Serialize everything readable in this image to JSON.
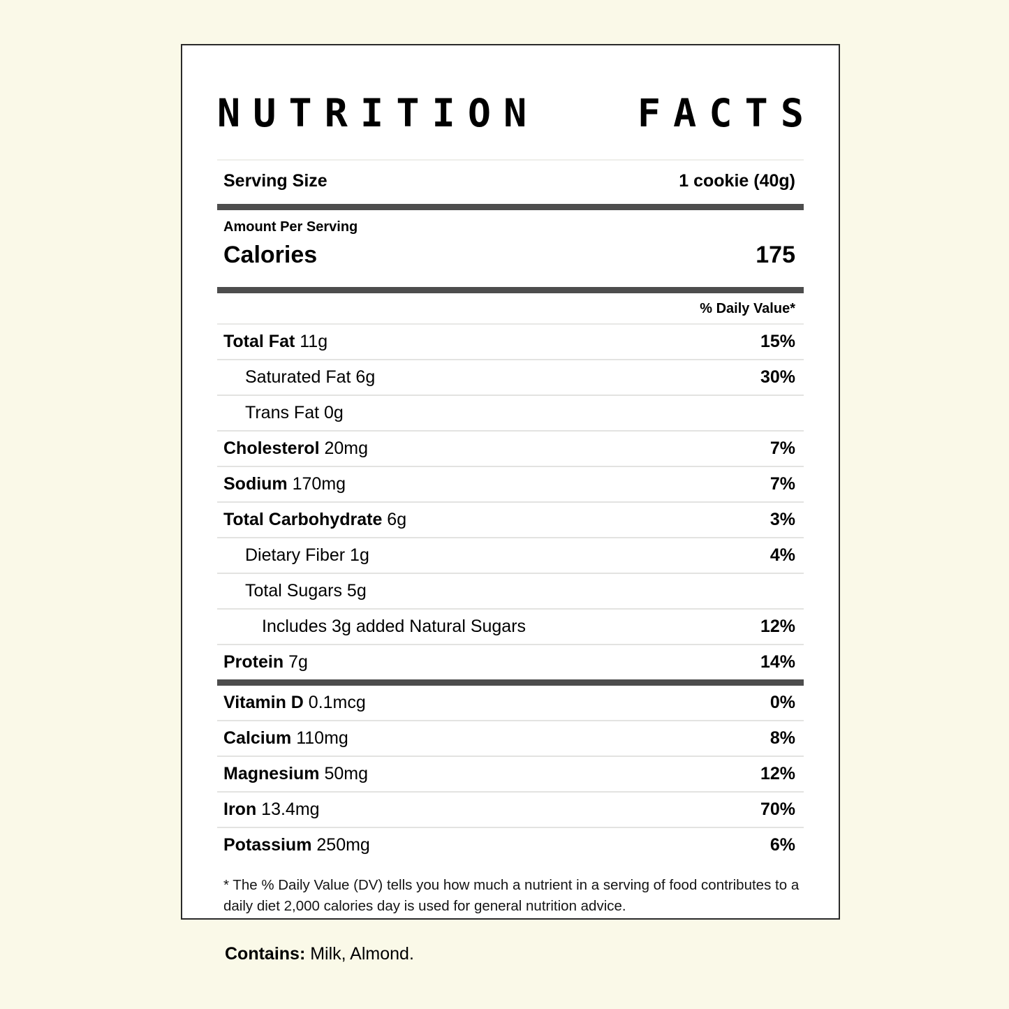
{
  "colors": {
    "page_background": "#FAF9E8",
    "card_background": "#FFFFFF",
    "card_border": "#2A2A2A",
    "thick_bar": "#4D4D4D",
    "thin_divider": "#E3E3E1",
    "text": "#000000"
  },
  "label": {
    "title_words": [
      "NUTRITION",
      "FACTS"
    ],
    "serving": {
      "label": "Serving Size",
      "value": "1 cookie (40g)"
    },
    "amount_per_serving": "Amount Per Serving",
    "calories": {
      "label": "Calories",
      "value": "175"
    },
    "daily_value_header": "% Daily Value*",
    "nutrient_rows": [
      {
        "name": "Total Fat",
        "amount": "11g",
        "dv": "15%",
        "bold": true,
        "indent": 0
      },
      {
        "name": "Saturated Fat",
        "amount": "6g",
        "dv": "30%",
        "bold": false,
        "indent": 1
      },
      {
        "name": "Trans Fat",
        "amount": "0g",
        "dv": "",
        "bold": false,
        "indent": 1
      },
      {
        "name": "Cholesterol",
        "amount": "20mg",
        "dv": "7%",
        "bold": true,
        "indent": 0
      },
      {
        "name": "Sodium",
        "amount": "170mg",
        "dv": "7%",
        "bold": true,
        "indent": 0
      },
      {
        "name": "Total Carbohydrate",
        "amount": "6g",
        "dv": "3%",
        "bold": true,
        "indent": 0
      },
      {
        "name": "Dietary Fiber",
        "amount": "1g",
        "dv": "4%",
        "bold": false,
        "indent": 1
      },
      {
        "name": "Total Sugars",
        "amount": "5g",
        "dv": "",
        "bold": false,
        "indent": 1
      },
      {
        "name": "Includes 3g added Natural Sugars",
        "amount": "",
        "dv": "12%",
        "bold": false,
        "indent": 2
      },
      {
        "name": "Protein",
        "amount": "7g",
        "dv": "14%",
        "bold": true,
        "indent": 0
      }
    ],
    "vitamin_rows": [
      {
        "name": "Vitamin D",
        "amount": "0.1mcg",
        "dv": "0%",
        "bold": true,
        "indent": 0
      },
      {
        "name": "Calcium",
        "amount": "110mg",
        "dv": "8%",
        "bold": true,
        "indent": 0
      },
      {
        "name": "Magnesium",
        "amount": "50mg",
        "dv": "12%",
        "bold": true,
        "indent": 0
      },
      {
        "name": "Iron",
        "amount": "13.4mg",
        "dv": "70%",
        "bold": true,
        "indent": 0
      },
      {
        "name": "Potassium",
        "amount": "250mg",
        "dv": "6%",
        "bold": true,
        "indent": 0
      }
    ],
    "footnote_lines": [
      "* The % Daily Value (DV) tells you how much a nutrient in a serving of food contributes to a",
      "daily diet 2,000 calories day is used for general nutrition advice."
    ],
    "contains": {
      "label": "Contains:",
      "value": " Milk, Almond."
    }
  }
}
